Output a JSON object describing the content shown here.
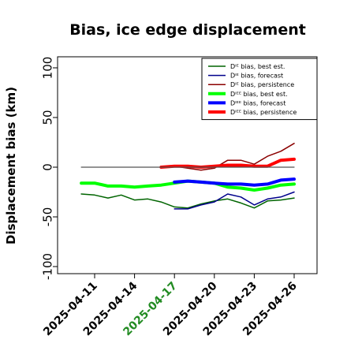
{
  "chart_data": {
    "type": "line",
    "title": "Bias, ice edge displacement",
    "ylabel": "Displacement bias (km)",
    "xlabel": "",
    "ylim": [
      -105,
      110
    ],
    "yticks": [
      -100,
      -50,
      0,
      50,
      100
    ],
    "xticks": [
      {
        "label": "2025-04-11",
        "x": 11,
        "color": "#000000"
      },
      {
        "label": "2025-04-14",
        "x": 14,
        "color": "#000000"
      },
      {
        "label": "2025-04-17",
        "x": 17,
        "color": "#228B22"
      },
      {
        "label": "2025-04-20",
        "x": 20,
        "color": "#000000"
      },
      {
        "label": "2025-04-23",
        "x": 23,
        "color": "#000000"
      },
      {
        "label": "2025-04-26",
        "x": 26,
        "color": "#000000"
      }
    ],
    "legend_position": "top-right",
    "grid": false,
    "series": [
      {
        "name": "Dᴵᴱ bias, best est.",
        "color": "#006400",
        "width": 1.5,
        "x": [
          10,
          11,
          12,
          13,
          14,
          15,
          16,
          17,
          18,
          19,
          20,
          21,
          22,
          23,
          24,
          25,
          26
        ],
        "y": [
          -27,
          -28,
          -31,
          -28,
          -33,
          -32,
          -35,
          -40,
          -41,
          -37,
          -34,
          -32,
          -36,
          -41,
          -34,
          -33,
          -31
        ]
      },
      {
        "name": "Dᴵᴱ bias, forecast",
        "color": "#00008B",
        "width": 1.5,
        "x": [
          17,
          18,
          19,
          20,
          21,
          22,
          23,
          24,
          25,
          26
        ],
        "y": [
          -42,
          -42,
          -38,
          -35,
          -27,
          -30,
          -38,
          -32,
          -30,
          -25
        ]
      },
      {
        "name": "Dᴵᴱ bias, persistence",
        "color": "#8B0000",
        "width": 1.5,
        "x": [
          17,
          18,
          19,
          20,
          21,
          22,
          23,
          24,
          25,
          26
        ],
        "y": [
          1,
          -1,
          -3,
          -1,
          7,
          7,
          3,
          11,
          16,
          24
        ]
      },
      {
        "name": "Dᴵᴱᴱ bias, best est.",
        "color": "#00FF00",
        "width": 4,
        "x": [
          10,
          11,
          12,
          13,
          14,
          15,
          16,
          17,
          18,
          19,
          20,
          21,
          22,
          23,
          24,
          25,
          26
        ],
        "y": [
          -16,
          -16,
          -19,
          -19,
          -20,
          -19,
          -18,
          -16,
          -14,
          -15,
          -16,
          -20,
          -21,
          -23,
          -21,
          -18,
          -17
        ]
      },
      {
        "name": "Dᴵᴱᴱ bias, forecast",
        "color": "#0000FF",
        "width": 4,
        "x": [
          17,
          18,
          19,
          20,
          21,
          22,
          23,
          24,
          25,
          26
        ],
        "y": [
          -15,
          -14,
          -15,
          -16,
          -17,
          -17,
          -18,
          -17,
          -13,
          -12
        ]
      },
      {
        "name": "Dᴵᴱᴱ bias, persistence",
        "color": "#FF0000",
        "width": 4,
        "x": [
          16,
          17,
          18,
          19,
          20,
          21,
          22,
          23,
          24,
          25,
          26
        ],
        "y": [
          0,
          1,
          1,
          0,
          1,
          2,
          2,
          1,
          1,
          7,
          8
        ]
      },
      {
        "name": "",
        "color": "#555555",
        "width": 1.2,
        "x": [
          10,
          26
        ],
        "y": [
          0,
          0
        ]
      }
    ]
  }
}
